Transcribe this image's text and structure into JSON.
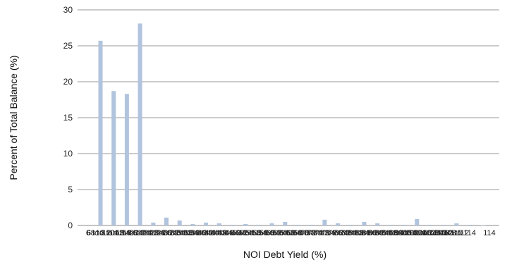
{
  "chart_data": {
    "type": "bar",
    "title": "",
    "xlabel": "NOI Debt Yield (%)",
    "ylabel": "Percent of Total Balance (%)",
    "ylim": [
      0,
      30
    ],
    "yticks": [
      0,
      5,
      10,
      15,
      20,
      25,
      30
    ],
    "grid": true,
    "bar_color": "#b0c4de",
    "categories": [
      "6",
      "to 8",
      "8 to 10",
      "10 to 12",
      "12 to 14",
      "14 to 16",
      "16 to 18",
      "18 to 20",
      "20 to 22",
      "22 to 24",
      "24 to 26",
      "26 to 28",
      "28 to 30",
      "30 to 32",
      "32 to 34",
      "34 to 36",
      "36 to 38",
      "38 to 40",
      "40 to 42",
      "42 to 44",
      "44 to 46",
      "46 to 48",
      "48 to 50",
      "50 to 52",
      "52 to 54",
      "54 to 56",
      "56 to 58",
      "58 to 60",
      "60 to 62",
      "62 to 64",
      "64 to 66",
      "66 to 68",
      "68 to 70",
      "70 to 72",
      "72 to 74",
      "74 to 76",
      "76 to 78",
      "78 to 80",
      "80 to 82",
      "82 to 84",
      "84 to 86",
      "86 to 88",
      "88 to 90",
      "90 to 92",
      "92 to 94",
      "94 to 96",
      "96 to 98",
      "98 to 100",
      "100 to 102",
      "102 to 104",
      "104 to 106",
      "106 to 108",
      "108 to 110",
      "110 to 112",
      "112 to 114",
      "114"
    ],
    "tick_labels": [
      "6",
      "6 to 8",
      "8 to 10",
      "10 to 12",
      "12 to 14",
      "14 to 16",
      "16 to 18",
      "18 to 20",
      "20 to 22",
      "22 to 24",
      "24 to 26",
      "26 to 28",
      "28 to 30",
      "30 to 32",
      "32 to 34",
      "34 to 36",
      "36 to 38",
      "38 to 40",
      "40 to 42",
      "42 to 44",
      "44 to 46",
      "46 to 48",
      "48 to 50",
      "50 to 52",
      "52 to 54",
      "54 to 56",
      "56 to 58",
      "58 to 60",
      "60 to 62",
      "62 to 64",
      "64 to 66",
      "66 to 68",
      "68 to 70",
      "70 to 72",
      "72 to 74",
      "74 to 76",
      "76 to 78",
      "78 to 80",
      "80 to 82",
      "82 to 84",
      "84 to 86",
      "86 to 88",
      "88 to 90",
      "90 to 92",
      "92 to 94",
      "94 to 96",
      "96 to 98",
      "98 to 100",
      "100 to 102",
      "102 to 104",
      "104 to 106",
      "106 to 108",
      "108 to 110",
      "110 to 112",
      "112 to 114",
      "114"
    ],
    "values": [
      0,
      25.7,
      18.7,
      18.3,
      28.1,
      0.4,
      1.1,
      0.7,
      0.2,
      0.4,
      0.3,
      0.1,
      0.2,
      0.1,
      0.3,
      0.5,
      0.1,
      0.1,
      0.8,
      0.3,
      0.1,
      0.5,
      0.3,
      0.1,
      0.1,
      0.9,
      0.1,
      0.1,
      0.3,
      0.1,
      0.05,
      0,
      0,
      0,
      0,
      0,
      0,
      0,
      0,
      0,
      0,
      0,
      0,
      0,
      0,
      0,
      0,
      0,
      0,
      0,
      0,
      0,
      0,
      0,
      0,
      0
    ]
  }
}
